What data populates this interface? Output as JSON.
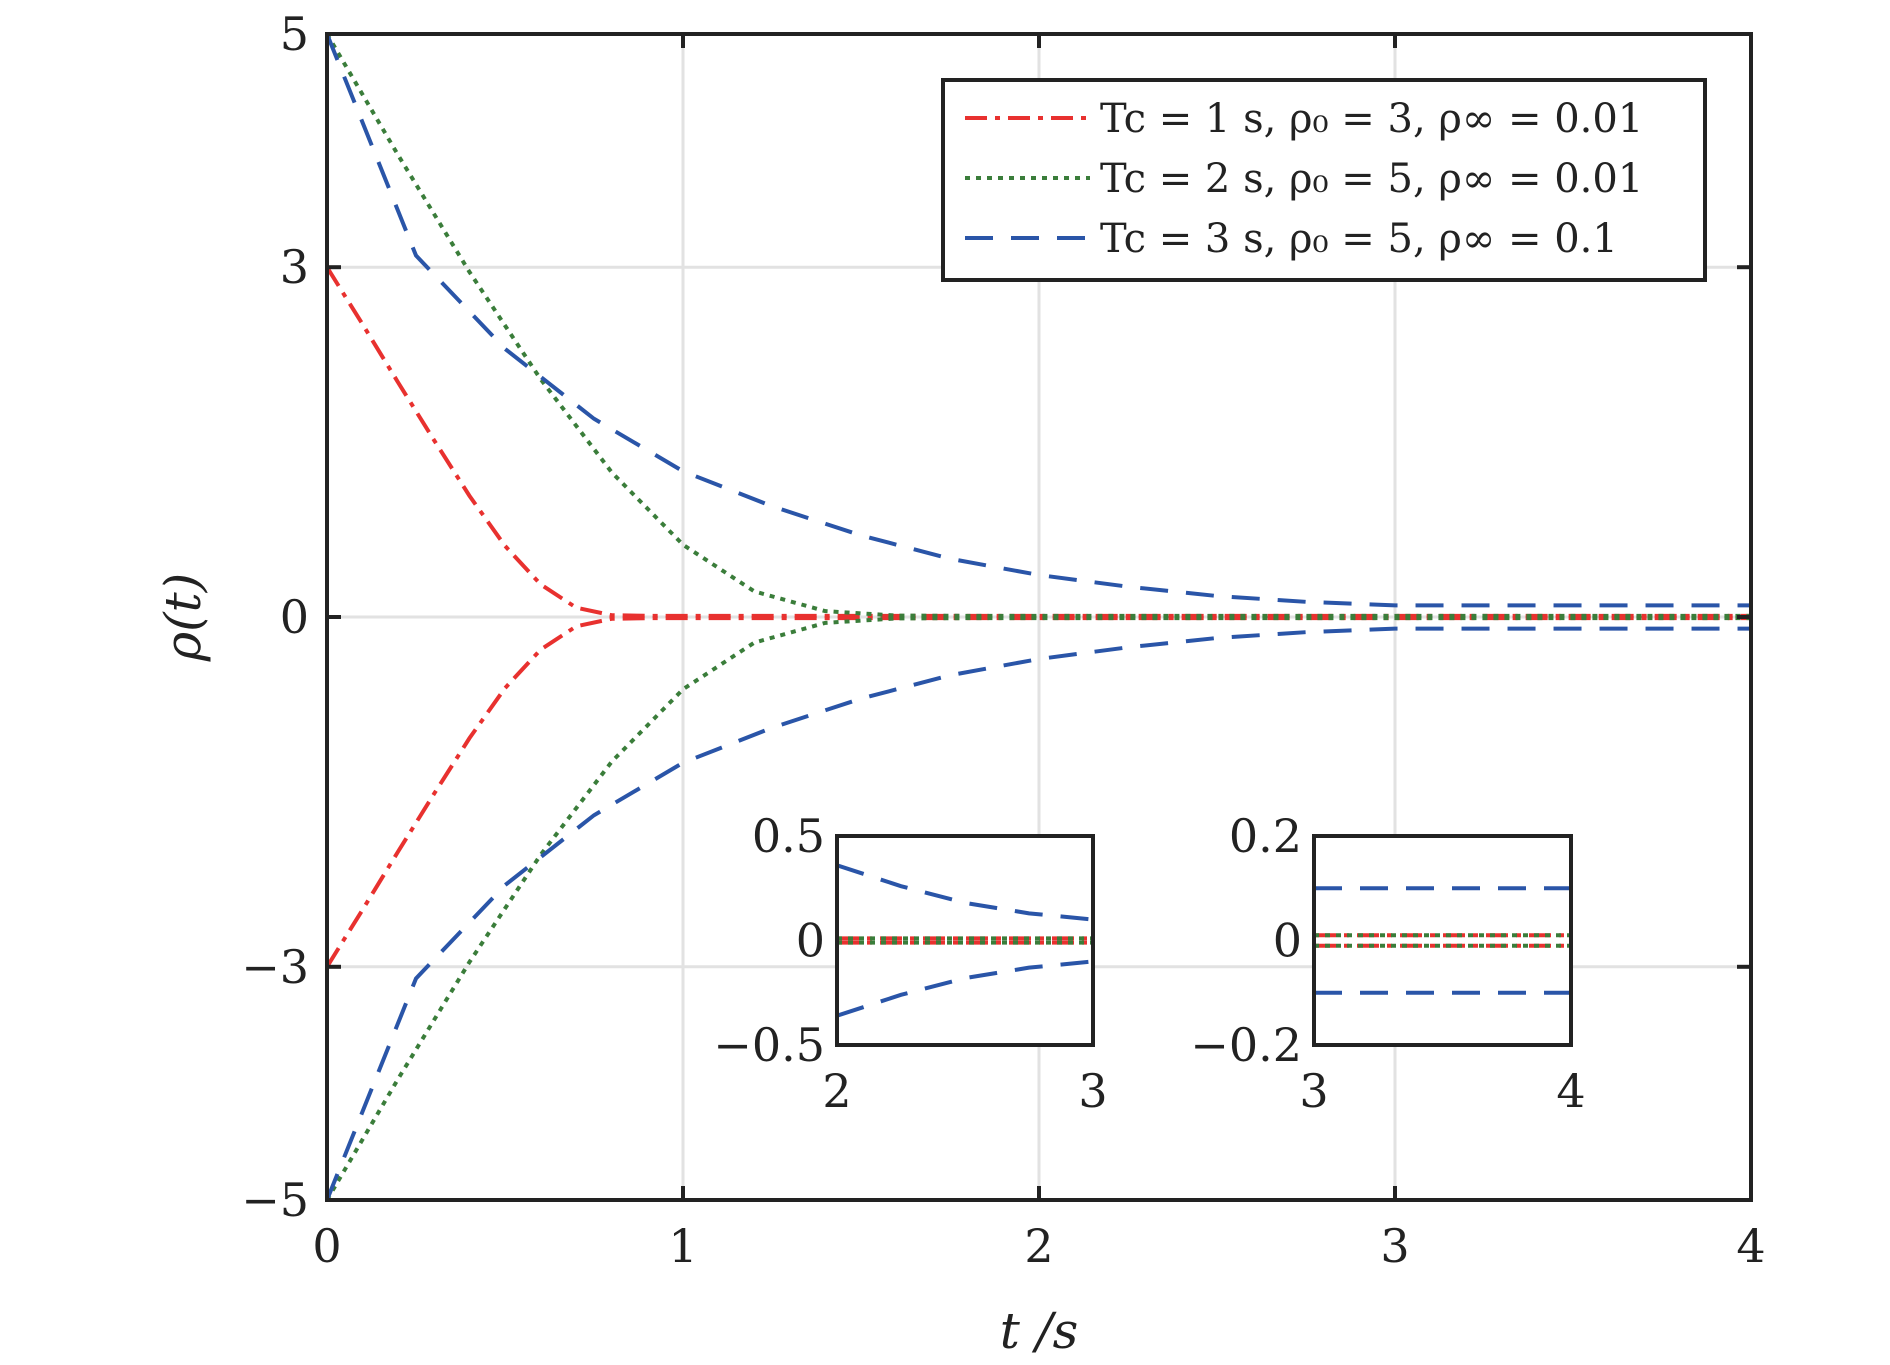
{
  "chart_data": {
    "type": "line",
    "title": "",
    "xlabel": "t /s",
    "ylabel": "ρ(t)",
    "xlim": [
      0,
      4
    ],
    "ylim": [
      -5,
      5
    ],
    "xticks": [
      "0",
      "1",
      "2",
      "3",
      "4"
    ],
    "yticks": [
      "−5",
      "−3",
      "0",
      "3",
      "5"
    ],
    "xtick_values": [
      0,
      1,
      2,
      3,
      4
    ],
    "ytick_values": [
      -5,
      -3,
      0,
      3,
      5
    ],
    "grid": true,
    "legend_position": "top-right",
    "series": [
      {
        "name": "Tc = 1 s, ρ₀ = 3, ρ∞ = 0.01",
        "color": "#e8312f",
        "style": "dash-dot",
        "mirrored": true,
        "x": [
          0,
          0.1,
          0.2,
          0.3,
          0.4,
          0.5,
          0.6,
          0.7,
          0.8,
          0.9,
          1.0,
          2.0,
          3.0,
          4.0
        ],
        "y": [
          3,
          2.51,
          2.01,
          1.52,
          1.04,
          0.61,
          0.28,
          0.08,
          0.015,
          0.01,
          0.01,
          0.01,
          0.01,
          0.01
        ]
      },
      {
        "name": "Tc = 2 s, ρ₀ = 5, ρ∞ = 0.01",
        "color": "#3a7d3a",
        "style": "dotted",
        "mirrored": true,
        "x": [
          0,
          0.2,
          0.4,
          0.6,
          0.8,
          1.0,
          1.2,
          1.4,
          1.6,
          1.8,
          2.0,
          3.0,
          4.0
        ],
        "y": [
          5,
          3.96,
          2.96,
          2.04,
          1.24,
          0.62,
          0.22,
          0.05,
          0.012,
          0.01,
          0.01,
          0.01,
          0.01
        ]
      },
      {
        "name": "Tc = 3 s, ρ₀ = 5, ρ∞ = 0.1",
        "color": "#2a55a8",
        "style": "dashed",
        "mirrored": true,
        "x": [
          0,
          0.25,
          0.5,
          0.75,
          1.0,
          1.25,
          1.5,
          1.75,
          2.0,
          2.25,
          2.5,
          2.75,
          3.0,
          4.0
        ],
        "y": [
          5,
          3.1,
          2.3,
          1.7,
          1.25,
          0.95,
          0.7,
          0.5,
          0.36,
          0.26,
          0.18,
          0.13,
          0.1,
          0.1
        ]
      }
    ],
    "insets": [
      {
        "xlim": [
          2,
          3
        ],
        "ylim": [
          -0.5,
          0.5
        ],
        "xticks": [
          "2",
          "3"
        ],
        "yticks": [
          "−0.5",
          "0",
          "0.5"
        ]
      },
      {
        "xlim": [
          3,
          4
        ],
        "ylim": [
          -0.2,
          0.2
        ],
        "xticks": [
          "3",
          "4"
        ],
        "yticks": [
          "−0.2",
          "0",
          "0.2"
        ]
      }
    ]
  }
}
